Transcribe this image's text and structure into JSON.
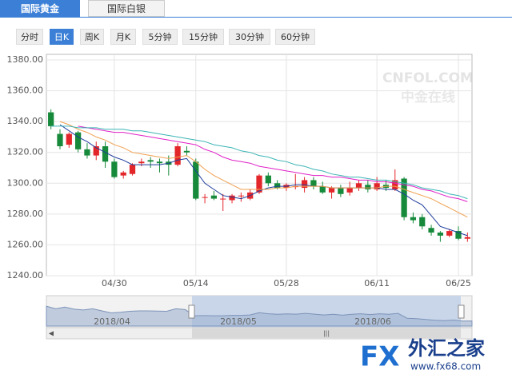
{
  "tabs": [
    "国际黄金",
    "国际白银"
  ],
  "active_tab": 0,
  "buttons": [
    "分时",
    "日K",
    "周K",
    "月K",
    "5分钟",
    "15分钟",
    "30分钟",
    "60分钟"
  ],
  "active_button": 1,
  "watermark": {
    "title": "CNFOL.COM",
    "subtitle": "中金在线"
  },
  "logo": {
    "mark": "FX",
    "name": "外汇之家",
    "url": "www.fx68.com"
  },
  "navigator_labels": [
    "2018/04",
    "2018/05",
    "2018/06"
  ],
  "chart_data": {
    "type": "candlestick",
    "categories": [
      null,
      null,
      null,
      null,
      null,
      null,
      null,
      "04/30",
      null,
      null,
      null,
      null,
      null,
      null,
      null,
      null,
      "05/14",
      null,
      null,
      null,
      null,
      null,
      null,
      null,
      null,
      null,
      "05/28",
      null,
      null,
      null,
      null,
      null,
      null,
      null,
      null,
      null,
      "06/11",
      null,
      null,
      null,
      null,
      null,
      null,
      null,
      null,
      "06/25",
      null
    ],
    "open": [
      1346,
      1332,
      1325,
      1333,
      1322,
      1318,
      1324,
      1314,
      1305,
      1306,
      1313,
      1315,
      1314,
      1314,
      1312,
      1321,
      1314,
      1291,
      1292,
      1290,
      1289,
      1292,
      1290,
      1294,
      1305,
      1300,
      1297,
      1298,
      1297,
      1302,
      1298,
      1294,
      1297,
      1294,
      1297,
      1299,
      1296,
      1299,
      1296,
      1303,
      1278,
      1278,
      1271,
      1268,
      1266,
      1269,
      1264
    ],
    "high": [
      1348,
      1335,
      1333,
      1334,
      1326,
      1327,
      1327,
      1316,
      1308,
      1313,
      1316,
      1317,
      1316,
      1318,
      1326,
      1324,
      1316,
      1293,
      1295,
      1293,
      1293,
      1294,
      1296,
      1306,
      1307,
      1302,
      1300,
      1306,
      1304,
      1304,
      1301,
      1298,
      1299,
      1301,
      1302,
      1302,
      1304,
      1302,
      1309,
      1304,
      1281,
      1280,
      1273,
      1269,
      1270,
      1272,
      1268
    ],
    "low": [
      1335,
      1322,
      1323,
      1320,
      1316,
      1315,
      1310,
      1303,
      1303,
      1305,
      1311,
      1310,
      1307,
      1305,
      1311,
      1318,
      1289,
      1287,
      1289,
      1282,
      1287,
      1288,
      1289,
      1293,
      1298,
      1296,
      1295,
      1296,
      1294,
      1296,
      1293,
      1290,
      1291,
      1292,
      1295,
      1294,
      1295,
      1295,
      1295,
      1276,
      1274,
      1270,
      1266,
      1262,
      1265,
      1263,
      1262
    ],
    "close": [
      1337,
      1324,
      1332,
      1322,
      1318,
      1324,
      1314,
      1304,
      1307,
      1312,
      1314,
      1314,
      1313,
      1312,
      1324,
      1320,
      1290,
      1291,
      1290,
      1290,
      1292,
      1292,
      1294,
      1305,
      1300,
      1297,
      1299,
      1298,
      1302,
      1298,
      1294,
      1297,
      1293,
      1297,
      1300,
      1296,
      1300,
      1297,
      1302,
      1278,
      1276,
      1272,
      1268,
      1266,
      1269,
      1264,
      1265
    ],
    "up_color": "#e3262a",
    "down_color": "#168a3a",
    "series": [
      {
        "color": "#1f3c9c",
        "values": [
          null,
          1338,
          1334,
          1330,
          1327,
          1323,
          1320,
          1317,
          1315,
          1312,
          1312,
          1312,
          1312,
          1313,
          1315,
          1316,
          1308,
          1300,
          1296,
          1292,
          1291,
          1290,
          1292,
          1295,
          1297,
          1298,
          1298,
          1299,
          1299,
          1298,
          1298,
          1297,
          1297,
          1297,
          1297,
          1297,
          1297,
          1296,
          1296,
          1293,
          1289,
          1286,
          1279,
          1272,
          1270,
          1268,
          1266
        ]
      },
      {
        "color": "#f0a050",
        "values": [
          null,
          1340,
          1338,
          1335,
          1333,
          1330,
          1328,
          1325,
          1323,
          1320,
          1319,
          1318,
          1317,
          1316,
          1317,
          1318,
          1314,
          1309,
          1305,
          1302,
          1299,
          1296,
          1296,
          1296,
          1296,
          1297,
          1297,
          1298,
          1298,
          1298,
          1298,
          1297,
          1297,
          1297,
          1297,
          1297,
          1297,
          1298,
          1298,
          1296,
          1294,
          1292,
          1290,
          1287,
          1284,
          1281,
          1278
        ]
      },
      {
        "color": "#e020c8",
        "values": [
          null,
          null,
          null,
          1337,
          1336,
          1335,
          1334,
          1333,
          1333,
          1332,
          1331,
          1330,
          1329,
          1328,
          1327,
          1326,
          1325,
          1322,
          1320,
          1317,
          1315,
          1314,
          1313,
          1311,
          1310,
          1309,
          1308,
          1307,
          1306,
          1305,
          1305,
          1304,
          1304,
          1303,
          1302,
          1302,
          1301,
          1301,
          1300,
          1299,
          1298,
          1296,
          1295,
          1293,
          1291,
          1290,
          1288
        ]
      },
      {
        "color": "#3cb4b4",
        "values": [
          1337,
          1337,
          1337,
          1336,
          1336,
          1336,
          1335,
          1335,
          1335,
          1334,
          1334,
          1333,
          1332,
          1331,
          1330,
          1329,
          1328,
          1327,
          1325,
          1324,
          1323,
          1321,
          1320,
          1318,
          1317,
          1315,
          1314,
          1312,
          1311,
          1309,
          1308,
          1306,
          1305,
          1304,
          1304,
          1303,
          1302,
          1302,
          1301,
          1300,
          1299,
          1297,
          1296,
          1295,
          1293,
          1292,
          1290
        ]
      }
    ],
    "ylim": [
      1240,
      1380
    ],
    "yticks": [
      {
        "value": 1240,
        "label": "1240.00"
      },
      {
        "value": 1260,
        "label": "1260.00"
      },
      {
        "value": 1280,
        "label": "1280.00"
      },
      {
        "value": 1300,
        "label": "1300.00"
      },
      {
        "value": 1320,
        "label": "1320.00"
      },
      {
        "value": 1340,
        "label": "1340.00"
      },
      {
        "value": 1360,
        "label": "1360.00"
      },
      {
        "value": 1380,
        "label": "1380.00"
      }
    ],
    "grid": true
  }
}
